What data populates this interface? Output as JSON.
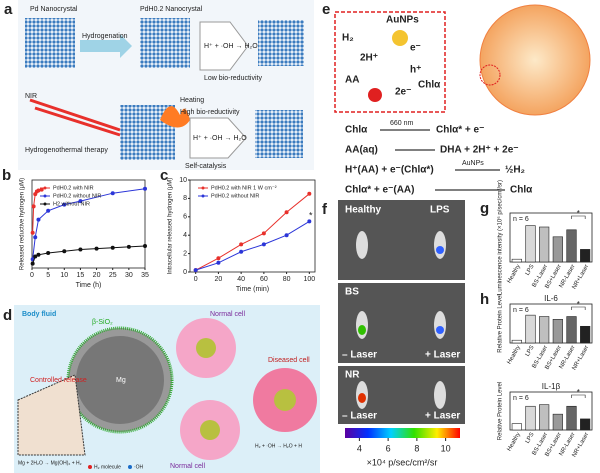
{
  "panels": {
    "a": {
      "letter": "a",
      "pd": "Pd Nanocrystal",
      "pdh": "PdH0.2 Nanocrystal",
      "hydrogenation": "Hydrogenation",
      "low": "Low bio-reductivity",
      "nir": "NIR",
      "heating": "Heating",
      "high": "High bio-reductivity",
      "therapy": "Hydrogenothermal therapy",
      "self": "Self-catalysis",
      "reaction1": "H⁺ + ·OH → H₂O",
      "reaction2": "H⁺ + ·OH → H₂O"
    },
    "d": {
      "letter": "d",
      "fluid": "Body fluid",
      "shell": "β-SiO₂",
      "release": "Controlled release",
      "core": "Mg",
      "normal1": "Normal cell",
      "normal2": "Normal cell",
      "diseased": "Diseased cell",
      "reaction": "Mg + 2H₂O → Mg(OH)₂ + H₂",
      "reaction2": "H₂ + ·OH → H₂O + H",
      "legend_h2": "H₂ molecule",
      "legend_oh": "·OH"
    },
    "e": {
      "letter": "e",
      "au": "AuNPs",
      "h2": "H₂",
      "h": "2H⁺",
      "e": "e⁻",
      "hole": "h⁺",
      "chl": "Chlα",
      "aa": "AA",
      "e2": "2e⁻",
      "arrow": "660 nm",
      "arrow2": "AuNPs",
      "eq1": [
        "Chlα",
        "Chlα* + e⁻"
      ],
      "eq2": [
        "AA(aq)",
        "DHA + 2H⁺ + 2e⁻"
      ],
      "eq3": [
        "H⁺(AA) + e⁻(Chlα*)",
        "½H₂"
      ],
      "eq4": [
        "Chlα* + e⁻(AA)",
        "Chlα"
      ]
    },
    "f": {
      "letter": "f",
      "healthy": "Healthy",
      "lps": "LPS",
      "bs": "BS",
      "minus1": "– Laser",
      "plus1": "+ Laser",
      "nr": "NR",
      "minus2": "– Laser",
      "plus2": "+ Laser",
      "colorbar": {
        "lim": [
          3,
          11
        ],
        "ticks": [
          4,
          6,
          8,
          10
        ],
        "label": "×10⁴ p/sec/cm²/sr"
      }
    }
  },
  "chart_data": [
    {
      "letter": "b",
      "type": "line",
      "xlabel": "Time (h)",
      "ylabel": "Released reductive hydrogen (μM)",
      "xlim": [
        0,
        35
      ],
      "xticks": [
        0,
        5,
        10,
        15,
        20,
        25,
        30,
        35
      ],
      "ylim": [
        0,
        100
      ],
      "series": [
        {
          "name": "PdH0.2 with NIR",
          "color": "#e8302b",
          "x": [
            0.2,
            0.5,
            1,
            1.5,
            2,
            3
          ],
          "values": [
            40,
            70,
            84,
            87,
            88,
            89
          ]
        },
        {
          "name": "PdH0.2 without NIR",
          "color": "#2b35d8",
          "x": [
            0.2,
            1,
            2,
            5,
            10,
            15,
            25,
            35
          ],
          "values": [
            10,
            35,
            55,
            65,
            72,
            76,
            85,
            90
          ]
        },
        {
          "name": "H2 without NIR",
          "color": "#111111",
          "x": [
            0.2,
            1,
            2,
            5,
            10,
            15,
            20,
            25,
            30,
            35
          ],
          "values": [
            5,
            13,
            15,
            17,
            19,
            21,
            22,
            23,
            24,
            25
          ]
        }
      ]
    },
    {
      "letter": "c",
      "type": "line",
      "xlabel": "Time (min)",
      "ylabel": "Intracellular released hydrogen (μM)",
      "xlim": [
        -5,
        105
      ],
      "xticks": [
        0,
        20,
        40,
        60,
        80,
        100
      ],
      "ylim": [
        0,
        10
      ],
      "yticks": [
        0,
        2,
        4,
        6,
        8,
        10
      ],
      "annotation": "*",
      "series": [
        {
          "name": "PdH0.2 with NIR 1 W cm⁻²",
          "color": "#e8302b",
          "x": [
            0,
            20,
            40,
            60,
            80,
            100
          ],
          "values": [
            0.2,
            1.5,
            3,
            4.2,
            6.5,
            8.5
          ]
        },
        {
          "name": "PdH0.2 without NIR",
          "color": "#2b35d8",
          "x": [
            0,
            20,
            40,
            60,
            80,
            100
          ],
          "values": [
            0.2,
            1,
            2.2,
            3,
            4,
            5.5
          ]
        }
      ]
    },
    {
      "letter": "g",
      "type": "bar",
      "ylabel": "Luminescence intensity (×10⁶ p/sec/cm²/sr)",
      "note": "n = 6",
      "annotation": "*",
      "categories": [
        "Healthy",
        "LPS",
        "BS-Laser",
        "BS+Laser",
        "NR-Laser",
        "NR+Laser"
      ],
      "values": [
        0.2,
        2.6,
        2.5,
        1.8,
        2.3,
        0.9
      ],
      "ylim": [
        0,
        3.5
      ],
      "colors": [
        "#ffffff",
        "#d9d9d9",
        "#bfbfbf",
        "#999999",
        "#666666",
        "#222222"
      ]
    },
    {
      "letter": "h",
      "type": "bar",
      "title": "IL-6",
      "ylabel": "Relative Protein Level",
      "note": "n = 6",
      "annotation": "*",
      "categories": [
        "Healthy",
        "LPS",
        "BS-Laser",
        "BS+Laser",
        "NR-Laser",
        "NR+Laser"
      ],
      "values": [
        0.1,
        1,
        0.95,
        0.85,
        0.95,
        0.6
      ],
      "ylim": [
        0,
        1.4
      ],
      "colors": [
        "#ffffff",
        "#d9d9d9",
        "#bfbfbf",
        "#999999",
        "#666666",
        "#222222"
      ]
    },
    {
      "type": "bar",
      "title": "IL-1β",
      "ylabel": "Relative Protein Level",
      "note": "n = 6",
      "annotation": "*",
      "categories": [
        "Healthy",
        "LPS",
        "BS-Laser",
        "BS+Laser",
        "NR-Laser",
        "NR+Laser"
      ],
      "values": [
        0.2,
        0.75,
        0.8,
        0.5,
        0.75,
        0.35
      ],
      "ylim": [
        0,
        1.2
      ],
      "colors": [
        "#ffffff",
        "#d9d9d9",
        "#bfbfbf",
        "#999999",
        "#666666",
        "#222222"
      ]
    }
  ]
}
